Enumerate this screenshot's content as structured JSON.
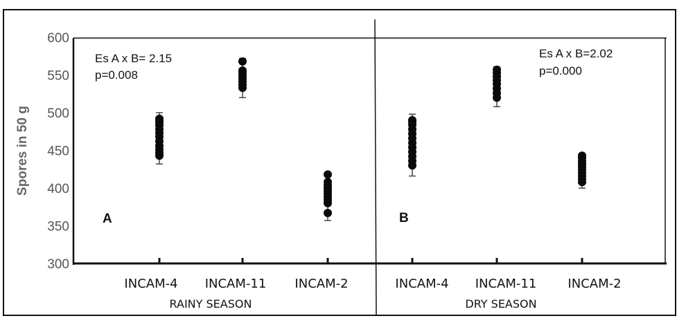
{
  "chart_data": {
    "type": "scatter",
    "ylabel": "Spores in 50 g",
    "ylim": [
      300,
      600
    ],
    "yticks": [
      300,
      350,
      400,
      450,
      500,
      550,
      600
    ],
    "panels": [
      {
        "label": "A",
        "season": "RAINY SEASON",
        "annotation": [
          "Es A x B= 2.15",
          "p=0.008"
        ],
        "categories": [
          "INCAM-4",
          "INCAM-11",
          "INCAM-2"
        ],
        "series": [
          {
            "name": "INCAM-4",
            "values": [
              443,
              447,
              451,
              456,
              462,
              468,
              473,
              478,
              483,
              487,
              490,
              492
            ],
            "error": [
              432,
              500
            ]
          },
          {
            "name": "INCAM-11",
            "values": [
              533,
              537,
              541,
              545,
              549,
              553,
              556,
              568
            ],
            "error": [
              520,
              572
            ]
          },
          {
            "name": "INCAM-2",
            "values": [
              367,
              380,
              384,
              388,
              392,
              396,
              400,
              404,
              408,
              418
            ],
            "error": [
              357,
              420
            ]
          }
        ]
      },
      {
        "label": "B",
        "season": "DRY SEASON",
        "annotation": [
          "Es A x B=2.02",
          "p=0.000"
        ],
        "categories": [
          "INCAM-4",
          "INCAM-11",
          "INCAM-2"
        ],
        "series": [
          {
            "name": "INCAM-4",
            "values": [
              430,
              436,
              442,
              448,
              454,
              460,
              466,
              472,
              478,
              484,
              488,
              490
            ],
            "error": [
              416,
              498
            ]
          },
          {
            "name": "INCAM-11",
            "values": [
              520,
              526,
              532,
              538,
              543,
              548,
              553,
              557
            ],
            "error": [
              508,
              561
            ]
          },
          {
            "name": "INCAM-2",
            "values": [
              408,
              412,
              416,
              420,
              424,
              428,
              432,
              436,
              440,
              443
            ],
            "error": [
              400,
              444
            ]
          }
        ]
      }
    ]
  }
}
